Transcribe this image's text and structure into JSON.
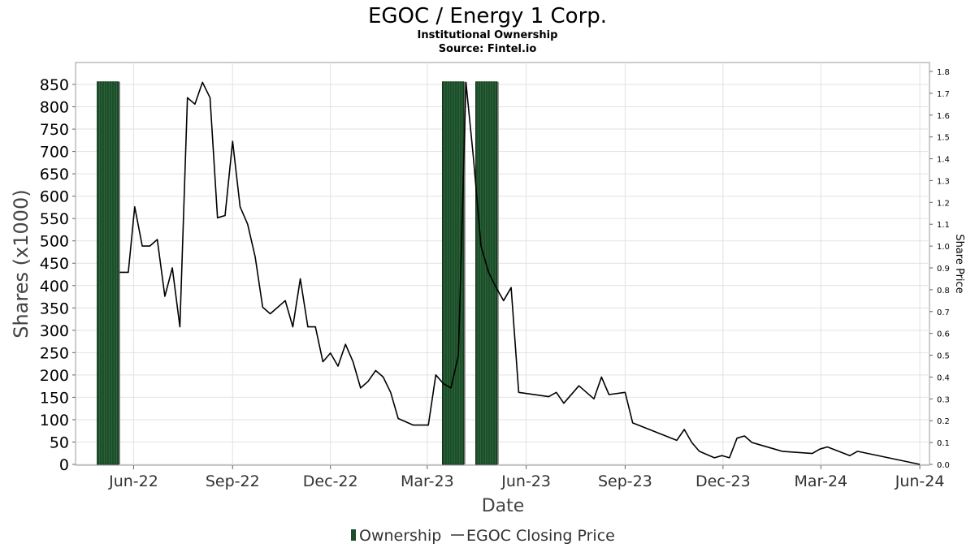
{
  "chart_data": {
    "type": "bar+line",
    "title": "EGOC / Energy 1 Corp.",
    "subtitle": "Institutional Ownership",
    "source": "Source: Fintel.io",
    "xlabel": "Date",
    "ylabel_left": "Shares (x1000)",
    "ylabel_right": "Share Price",
    "ylim_left": [
      0,
      860
    ],
    "ylim_right": [
      0,
      1.8
    ],
    "yticks_left": [
      "0",
      "50",
      "100",
      "150",
      "200",
      "250",
      "300",
      "350",
      "400",
      "450",
      "500",
      "550",
      "600",
      "650",
      "700",
      "750",
      "800",
      "850"
    ],
    "yticks_right": [
      "0.0",
      "0.1",
      "0.2",
      "0.3",
      "0.4",
      "0.5",
      "0.6",
      "0.7",
      "0.8",
      "0.9",
      "1.0",
      "1.1",
      "1.2",
      "1.3",
      "1.4",
      "1.5",
      "1.6",
      "1.7",
      "1.8"
    ],
    "x_range": [
      "2022-04-08",
      "2024-06-10"
    ],
    "x_ticks": [
      {
        "date": "2022-06-01",
        "label": "Jun-22"
      },
      {
        "date": "2022-09-01",
        "label": "Sep-22"
      },
      {
        "date": "2022-12-01",
        "label": "Dec-22"
      },
      {
        "date": "2023-03-01",
        "label": "Mar-23"
      },
      {
        "date": "2023-06-01",
        "label": "Jun-23"
      },
      {
        "date": "2023-09-01",
        "label": "Sep-23"
      },
      {
        "date": "2023-12-01",
        "label": "Dec-23"
      },
      {
        "date": "2024-03-01",
        "label": "Mar-24"
      },
      {
        "date": "2024-06-01",
        "label": "Jun-24"
      }
    ],
    "grid": true,
    "legend_position": "bottom",
    "series": [
      {
        "name": "Ownership",
        "type": "bar",
        "axis": "left",
        "color": "#1d4d2a",
        "data": [
          {
            "start": "2022-04-28",
            "end": "2022-05-18",
            "value": 856
          },
          {
            "start": "2023-03-15",
            "end": "2023-04-04",
            "value": 856
          },
          {
            "start": "2023-04-15",
            "end": "2023-05-05",
            "value": 856
          }
        ]
      },
      {
        "name": "EGOC Closing Price",
        "type": "line",
        "axis": "right",
        "color": "#000000",
        "x": [
          "2022-05-19",
          "2022-05-27",
          "2022-06-02",
          "2022-06-09",
          "2022-06-16",
          "2022-06-23",
          "2022-06-30",
          "2022-07-07",
          "2022-07-14",
          "2022-07-21",
          "2022-07-28",
          "2022-08-04",
          "2022-08-11",
          "2022-08-18",
          "2022-08-25",
          "2022-09-01",
          "2022-09-08",
          "2022-09-15",
          "2022-09-22",
          "2022-09-29",
          "2022-10-06",
          "2022-10-20",
          "2022-10-27",
          "2022-11-03",
          "2022-11-10",
          "2022-11-17",
          "2022-11-24",
          "2022-12-01",
          "2022-12-08",
          "2022-12-15",
          "2022-12-22",
          "2022-12-29",
          "2023-01-05",
          "2023-01-12",
          "2023-01-19",
          "2023-01-26",
          "2023-02-02",
          "2023-02-16",
          "2023-02-23",
          "2023-03-02",
          "2023-03-09",
          "2023-03-16",
          "2023-03-23",
          "2023-03-30",
          "2023-04-06",
          "2023-04-13",
          "2023-04-20",
          "2023-04-27",
          "2023-05-04",
          "2023-05-11",
          "2023-05-18",
          "2023-05-25",
          "2023-06-22",
          "2023-06-29",
          "2023-07-06",
          "2023-07-20",
          "2023-08-03",
          "2023-08-10",
          "2023-08-17",
          "2023-09-01",
          "2023-09-08",
          "2023-10-19",
          "2023-10-26",
          "2023-11-02",
          "2023-11-09",
          "2023-11-23",
          "2023-11-30",
          "2023-12-07",
          "2023-12-14",
          "2023-12-21",
          "2023-12-28",
          "2024-01-04",
          "2024-01-18",
          "2024-01-25",
          "2024-02-22",
          "2024-02-29",
          "2024-03-07",
          "2024-03-28",
          "2024-04-04",
          "2024-06-01"
        ],
        "values": [
          0.88,
          0.88,
          1.18,
          1.0,
          1.0,
          1.03,
          0.77,
          0.9,
          0.63,
          1.68,
          1.65,
          1.75,
          1.68,
          1.13,
          1.14,
          1.48,
          1.18,
          1.1,
          0.95,
          0.72,
          0.69,
          0.75,
          0.63,
          0.85,
          0.63,
          0.63,
          0.47,
          0.51,
          0.45,
          0.55,
          0.47,
          0.35,
          0.38,
          0.43,
          0.4,
          0.33,
          0.21,
          0.18,
          0.18,
          0.18,
          0.41,
          0.37,
          0.35,
          0.5,
          1.75,
          1.4,
          1.0,
          0.88,
          0.81,
          0.75,
          0.81,
          0.33,
          0.31,
          0.33,
          0.28,
          0.36,
          0.3,
          0.4,
          0.32,
          0.33,
          0.19,
          0.11,
          0.16,
          0.1,
          0.06,
          0.03,
          0.04,
          0.03,
          0.12,
          0.13,
          0.1,
          0.09,
          0.07,
          0.06,
          0.05,
          0.07,
          0.08,
          0.04,
          0.06,
          0.0
        ]
      }
    ]
  },
  "legend": {
    "ownership_label": "Ownership",
    "price_label": "EGOC Closing Price"
  }
}
